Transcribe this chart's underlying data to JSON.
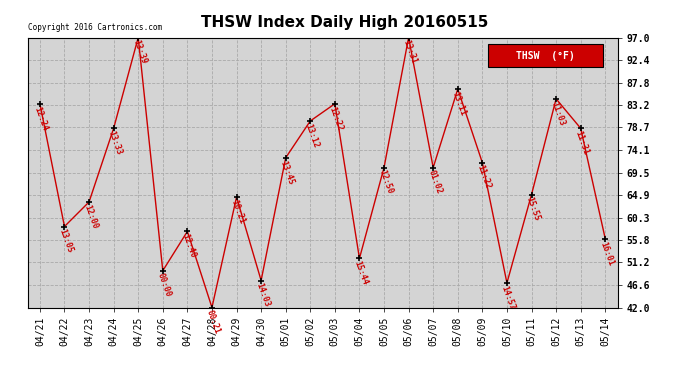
{
  "title": "THSW Index Daily High 20160515",
  "copyright": "Copyright 2016 Cartronics.com",
  "legend_label": "THSW  (°F)",
  "dates": [
    "04/21",
    "04/22",
    "04/23",
    "04/24",
    "04/25",
    "04/26",
    "04/27",
    "04/28",
    "04/29",
    "04/30",
    "05/01",
    "05/02",
    "05/03",
    "05/04",
    "05/05",
    "05/06",
    "05/07",
    "05/08",
    "05/09",
    "05/10",
    "05/11",
    "05/12",
    "05/13",
    "05/14"
  ],
  "values": [
    83.5,
    58.5,
    63.5,
    78.5,
    97.0,
    49.5,
    57.5,
    42.0,
    64.5,
    47.5,
    72.5,
    80.0,
    83.5,
    52.0,
    70.5,
    97.0,
    70.5,
    86.5,
    71.5,
    47.0,
    65.0,
    84.5,
    78.5,
    56.0
  ],
  "time_labels": [
    "12:24",
    "13:05",
    "12:00",
    "13:33",
    "13:39",
    "00:00",
    "12:40",
    "00:21",
    "10:21",
    "14:03",
    "13:45",
    "13:12",
    "12:22",
    "15:44",
    "12:50",
    "13:31",
    "01:02",
    "13:11",
    "11:22",
    "14:57",
    "15:55",
    "11:03",
    "11:31",
    "16:01"
  ],
  "ylim": [
    42.0,
    97.0
  ],
  "yticks": [
    42.0,
    46.6,
    51.2,
    55.8,
    60.3,
    64.9,
    69.5,
    74.1,
    78.7,
    83.2,
    87.8,
    92.4,
    97.0
  ],
  "line_color": "#cc0000",
  "marker_color": "#000000",
  "label_color": "#cc0000",
  "bg_color": "#d4d4d4",
  "plot_bg": "#d4d4d4",
  "outer_bg": "#ffffff",
  "legend_bg": "#cc0000",
  "legend_text_color": "#ffffff",
  "title_fontsize": 11,
  "tick_fontsize": 7,
  "annotation_fontsize": 6,
  "fig_width": 6.9,
  "fig_height": 3.75,
  "fig_dpi": 100
}
